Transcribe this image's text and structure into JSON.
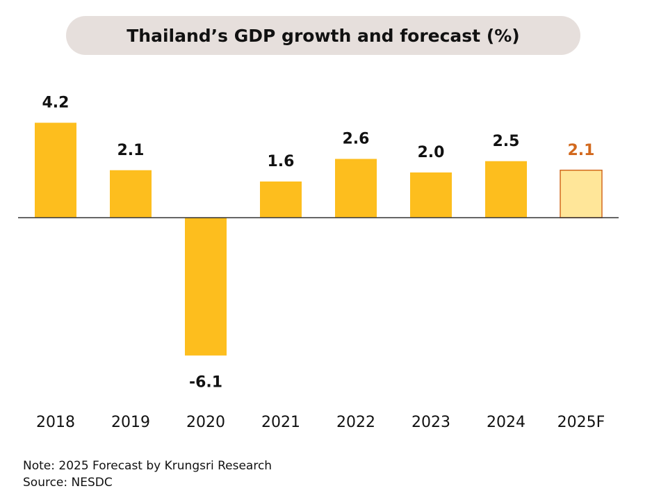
{
  "chart_data": {
    "type": "bar",
    "title": "Thailand’s GDP growth and forecast (%)",
    "categories": [
      "2018",
      "2019",
      "2020",
      "2021",
      "2022",
      "2023",
      "2024",
      "2025F"
    ],
    "values": [
      4.2,
      2.1,
      -6.1,
      1.6,
      2.6,
      2.0,
      2.5,
      2.1
    ],
    "labels": [
      "4.2",
      "2.1",
      "-6.1",
      "1.6",
      "2.6",
      "2.0",
      "2.5",
      "2.1"
    ],
    "forecast_index": 7,
    "grid": false,
    "colors": {
      "bar": "#fdbe1e",
      "forecast_fill": "#ffe699",
      "forecast_stroke": "#d2691e",
      "forecast_label": "#d2691e",
      "axis": "#333333"
    }
  },
  "notes": {
    "note": "Note: 2025 Forecast by Krungsri Research",
    "source": "Source: NESDC"
  }
}
